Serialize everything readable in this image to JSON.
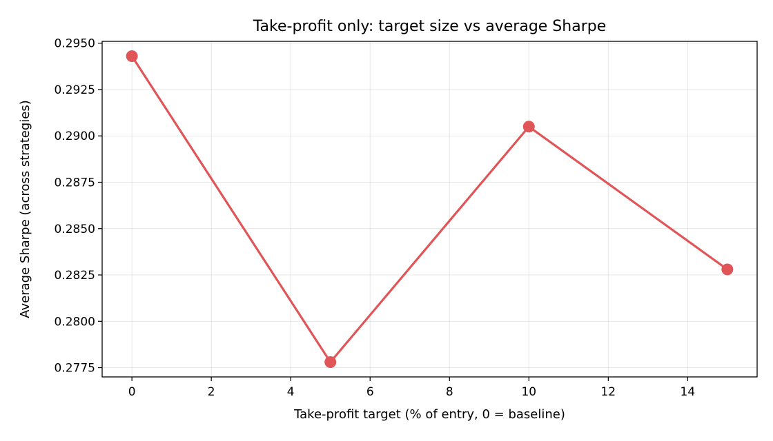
{
  "chart_data": {
    "type": "line",
    "title": "Take-profit only: target size vs average Sharpe",
    "xlabel": "Take-profit target (% of entry, 0 = baseline)",
    "ylabel": "Average Sharpe (across strategies)",
    "xlim": [
      -0.75,
      15.75
    ],
    "ylim": [
      0.277,
      0.2951
    ],
    "xticks": [
      0,
      2,
      4,
      6,
      8,
      10,
      12,
      14
    ],
    "xtick_labels": [
      "0",
      "2",
      "4",
      "6",
      "8",
      "10",
      "12",
      "14"
    ],
    "yticks": [
      0.2775,
      0.28,
      0.2825,
      0.285,
      0.2875,
      0.29,
      0.2925,
      0.295
    ],
    "ytick_labels": [
      "0.2775",
      "0.2800",
      "0.2825",
      "0.2850",
      "0.2875",
      "0.2900",
      "0.2925",
      "0.2950"
    ],
    "grid": true,
    "series": [
      {
        "x": [
          0,
          5,
          10,
          15
        ],
        "y": [
          0.2943,
          0.2778,
          0.2905,
          0.2828
        ],
        "color": "#e05557",
        "marker": "circle"
      }
    ]
  }
}
